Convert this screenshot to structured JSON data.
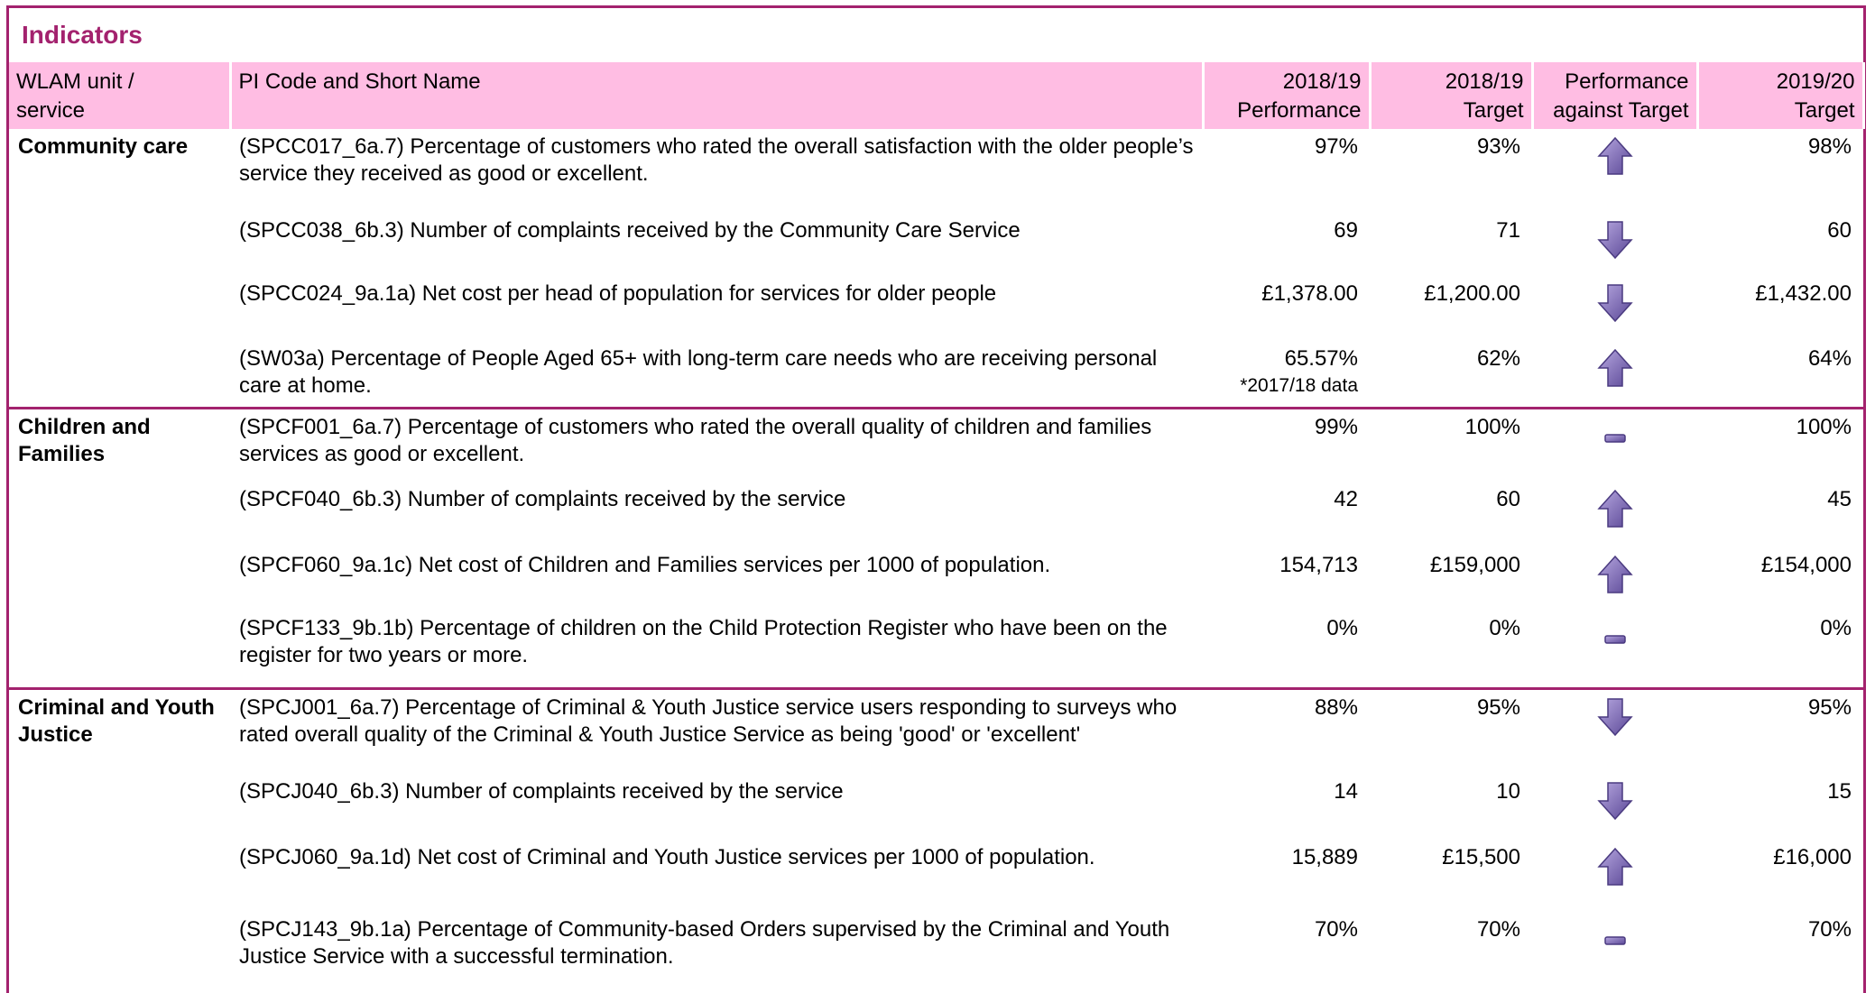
{
  "title": "Indicators",
  "header": [
    "WLAM unit /\nservice",
    "PI Code and Short Name",
    "2018/19\nPerformance",
    "2018/19\nTarget",
    "Performance\nagainst Target",
    "2019/20\nTarget"
  ],
  "groups": [
    {
      "unit": "Community care",
      "rows": [
        {
          "indicator": " (SPCC017_6a.7)  Percentage of customers who rated the overall satisfaction with the older people’s service they received as good or excellent.",
          "performance": "97%",
          "target": "93%",
          "next_target": "98%"
        },
        {
          "indicator": "(SPCC038_6b.3)  Number of complaints received by the Community Care Service",
          "performance": "69",
          "target": "71",
          "next_target": "60"
        },
        {
          "indicator": "(SPCC024_9a.1a)  Net cost per head of population for services for older people",
          "performance": "£1,378.00",
          "target": "£1,200.00",
          "next_target": "£1,432.00"
        },
        {
          "indicator": "(SW03a) Percentage of People Aged 65+ with long-term care needs who are receiving personal care at home.",
          "performance": "65.57%",
          "performance_note": "*2017/18 data",
          "target": "62%",
          "next_target": "64%"
        }
      ]
    },
    {
      "unit": "Children and Families",
      "rows": [
        {
          "indicator": " (SPCF001_6a.7) Percentage of customers who rated the overall quality of children and families services as good or excellent.",
          "performance": "99%",
          "target": "100%",
          "next_target": "100%"
        },
        {
          "indicator": "(SPCF040_6b.3) Number of complaints received by the service",
          "performance": "42",
          "target": "60",
          "next_target": "45"
        },
        {
          "indicator": "(SPCF060_9a.1c)  Net cost of Children and Families services per 1000 of population.",
          "performance": "154,713",
          "target": "£159,000",
          "next_target": "£154,000"
        },
        {
          "indicator": "(SPCF133_9b.1b)  Percentage of children on the Child Protection Register who have been on the register for two years or more.",
          "performance": "0%",
          "target": "0%",
          "next_target": "0%"
        }
      ]
    },
    {
      "unit": "Criminal and Youth Justice",
      "rows": [
        {
          "indicator": "(SPCJ001_6a.7) Percentage of Criminal & Youth Justice service users responding to surveys who rated overall quality of the Criminal & Youth Justice Service as being 'good' or 'excellent'",
          "performance": "88%",
          "target": "95%",
          "next_target": "95%"
        },
        {
          "indicator": "(SPCJ040_6b.3)  Number of complaints received by the service",
          "performance": "14",
          "target": "10",
          "next_target": "15"
        },
        {
          "indicator": "(SPCJ060_9a.1d)  Net cost of Criminal and Youth Justice services per 1000 of population.",
          "performance": "15,889",
          "target": "£15,500",
          "next_target": "£16,000"
        },
        {
          "indicator": "(SPCJ143_9b.1a)  Percentage of Community-based Orders supervised by the Criminal and Youth Justice Service with a successful termination.",
          "performance": "70%",
          "target": "70%",
          "next_target": "70%"
        }
      ]
    }
  ]
}
